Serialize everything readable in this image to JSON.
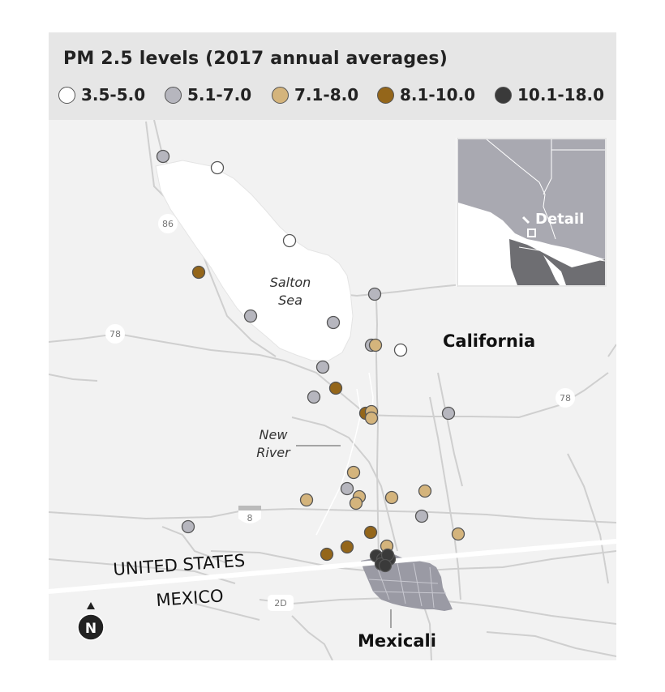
{
  "legend": {
    "title": "PM 2.5 levels (2017 annual averages)",
    "items": [
      {
        "label": "3.5-5.0",
        "color": "#ffffff"
      },
      {
        "label": "5.1-7.0",
        "color": "#b6b6be"
      },
      {
        "label": "7.1-8.0",
        "color": "#d4b47c"
      },
      {
        "label": "8.1-10.0",
        "color": "#94661a"
      },
      {
        "label": "10.1-18.0",
        "color": "#3a3a3a"
      }
    ]
  },
  "places": {
    "salton_sea_line1": "Salton",
    "salton_sea_line2": "Sea",
    "new_river_line1": "New",
    "new_river_line2": "River",
    "state": "California",
    "city": "Mexicali",
    "country_north": "UNITED STATES",
    "country_south": "MEXICO"
  },
  "highways": {
    "hwy86": "86",
    "hwy78_west": "78",
    "hwy78_east": "78",
    "hwy8": "8",
    "hwy2d": "2D"
  },
  "inset": {
    "label": "Detail"
  },
  "compass": {
    "label": "N"
  }
}
